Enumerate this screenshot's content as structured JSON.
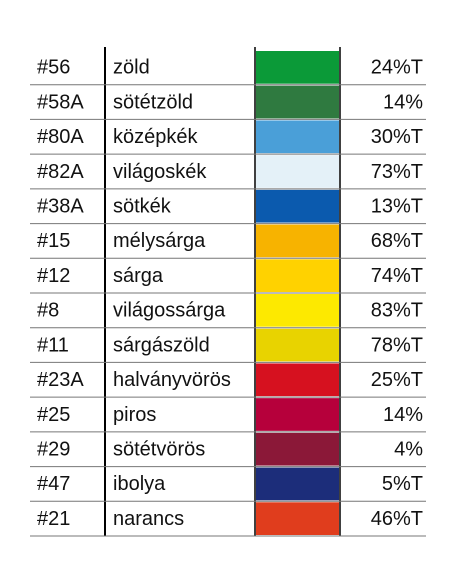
{
  "table": {
    "rows": [
      {
        "code": "#56",
        "name": "zöld",
        "color": "#0b9a38",
        "percent": "24%T"
      },
      {
        "code": "#58A",
        "name": "sötétzöld",
        "color": "#2f7a40",
        "percent": "14%"
      },
      {
        "code": "#80A",
        "name": "középkék",
        "color": "#4a9fd8",
        "percent": "30%T"
      },
      {
        "code": "#82A",
        "name": "világoskék",
        "color": "#e4f1f8",
        "percent": "73%T"
      },
      {
        "code": "#38A",
        "name": "sötkék",
        "color": "#0b5aae",
        "percent": "13%T"
      },
      {
        "code": "#15",
        "name": "mélysárga",
        "color": "#f7b300",
        "percent": "68%T"
      },
      {
        "code": "#12",
        "name": "sárga",
        "color": "#ffd200",
        "percent": "74%T"
      },
      {
        "code": "#8",
        "name": "világossárga",
        "color": "#fde900",
        "percent": "83%T"
      },
      {
        "code": "#11",
        "name": "sárgászöld",
        "color": "#e8d300",
        "percent": "78%T"
      },
      {
        "code": "#23A",
        "name": "halványvörös",
        "color": "#d6111f",
        "percent": "25%T"
      },
      {
        "code": "#25",
        "name": "piros",
        "color": "#b6003b",
        "percent": "14%"
      },
      {
        "code": "#29",
        "name": "sötétvörös",
        "color": "#8b1838",
        "percent": "4%"
      },
      {
        "code": "#47",
        "name": "ibolya",
        "color": "#1c2d7a",
        "percent": "5%T"
      },
      {
        "code": "#21",
        "name": "narancs",
        "color": "#e03d1d",
        "percent": "46%T"
      }
    ]
  }
}
